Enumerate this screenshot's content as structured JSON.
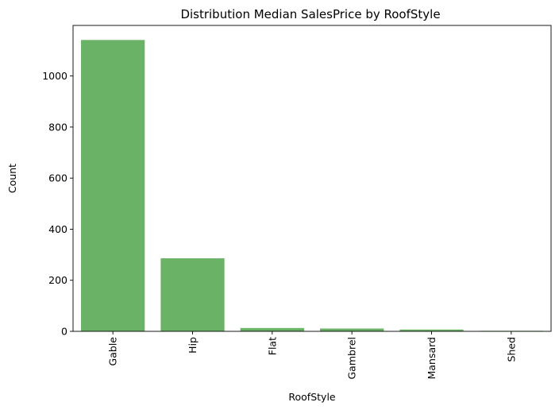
{
  "chart_data": {
    "type": "bar",
    "title": "Distribution Median SalesPrice by RoofStyle",
    "xlabel": "RoofStyle",
    "ylabel": "Count",
    "categories": [
      "Gable",
      "Hip",
      "Flat",
      "Gambrel",
      "Mansard",
      "Shed"
    ],
    "values": [
      1141,
      286,
      13,
      11,
      7,
      2
    ],
    "ylim": [
      0,
      1198
    ],
    "yticks": [
      0,
      200,
      400,
      600,
      800,
      1000
    ],
    "bar_color": "#6ab266",
    "grid": false,
    "legend": "none"
  }
}
